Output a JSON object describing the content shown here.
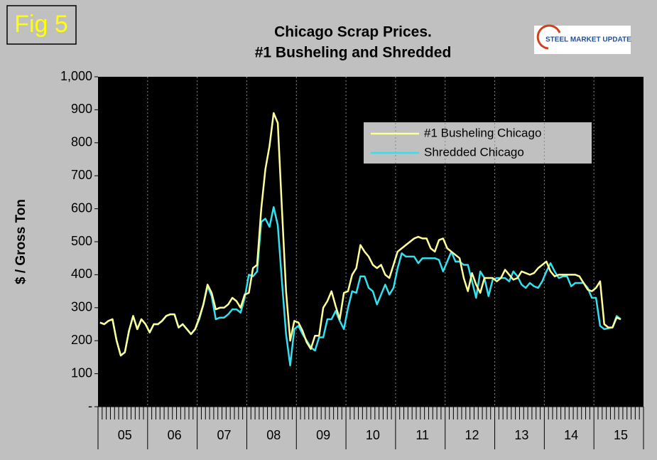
{
  "chart_data": {
    "type": "line",
    "figure_label": "Fig 5",
    "title_lines": [
      "Chicago Scrap Prices.",
      "#1 Busheling and Shredded"
    ],
    "logo_text": "STEEL MARKET UPDATE",
    "y_label": "$ / Gross Ton",
    "categories": [
      null,
      null,
      null,
      null,
      null,
      null,
      "05",
      null,
      null,
      null,
      null,
      null,
      null,
      null,
      null,
      null,
      null,
      null,
      "06",
      null,
      null,
      null,
      null,
      null,
      null,
      null,
      null,
      null,
      null,
      null,
      "07",
      null,
      null,
      null,
      null,
      null,
      null,
      null,
      null,
      null,
      null,
      null,
      "08",
      null,
      null,
      null,
      null,
      null,
      null,
      null,
      null,
      null,
      null,
      null,
      "09",
      null,
      null,
      null,
      null,
      null,
      null,
      null,
      null,
      null,
      null,
      null,
      "10",
      null,
      null,
      null,
      null,
      null,
      null,
      null,
      null,
      null,
      null,
      null,
      "11",
      null,
      null,
      null,
      null,
      null,
      null,
      null,
      null,
      null,
      null,
      null,
      "12",
      null,
      null,
      null,
      null,
      null,
      null,
      null,
      null,
      null,
      null,
      null,
      "13",
      null,
      null,
      null,
      null,
      null,
      null,
      null,
      null,
      null,
      null,
      null,
      "14",
      null,
      null,
      null,
      null,
      null,
      null,
      null,
      null,
      null,
      null,
      null,
      "15",
      null,
      null,
      null,
      null,
      null
    ],
    "series": [
      {
        "name": "#1 Busheling Chicago",
        "color": "#ffff99",
        "values": [
          255,
          250,
          260,
          265,
          200,
          155,
          165,
          230,
          275,
          235,
          265,
          250,
          225,
          250,
          250,
          260,
          275,
          280,
          280,
          240,
          250,
          235,
          220,
          235,
          270,
          310,
          370,
          345,
          295,
          300,
          300,
          310,
          330,
          320,
          300,
          340,
          345,
          420,
          430,
          600,
          720,
          790,
          890,
          860,
          600,
          350,
          200,
          260,
          255,
          230,
          195,
          175,
          215,
          215,
          300,
          320,
          350,
          305,
          265,
          345,
          350,
          400,
          420,
          490,
          470,
          455,
          430,
          420,
          430,
          400,
          390,
          430,
          470,
          480,
          490,
          500,
          510,
          515,
          510,
          510,
          480,
          470,
          505,
          510,
          480,
          470,
          460,
          450,
          390,
          350,
          405,
          370,
          345,
          390,
          390,
          390,
          380,
          390,
          415,
          400,
          385,
          390,
          410,
          405,
          400,
          405,
          420,
          430,
          440,
          410,
          395,
          400,
          400,
          400,
          400,
          400,
          395,
          375,
          355,
          350,
          360,
          380,
          250,
          240,
          240,
          270,
          265,
          null,
          null,
          null,
          null,
          null
        ]
      },
      {
        "name": "Shredded Chicago",
        "color": "#33e0f0",
        "values": [
          255,
          250,
          260,
          265,
          200,
          155,
          165,
          230,
          275,
          235,
          265,
          250,
          225,
          250,
          250,
          260,
          275,
          280,
          280,
          240,
          250,
          235,
          220,
          235,
          265,
          310,
          365,
          335,
          265,
          270,
          270,
          280,
          295,
          295,
          285,
          330,
          400,
          395,
          410,
          560,
          570,
          545,
          605,
          550,
          380,
          220,
          125,
          235,
          245,
          220,
          200,
          180,
          170,
          210,
          210,
          265,
          265,
          290,
          260,
          235,
          300,
          350,
          345,
          395,
          395,
          360,
          350,
          310,
          340,
          370,
          340,
          360,
          420,
          465,
          455,
          455,
          455,
          435,
          450,
          450,
          450,
          450,
          445,
          410,
          440,
          470,
          440,
          440,
          430,
          430,
          380,
          330,
          410,
          390,
          335,
          385,
          390,
          390,
          390,
          380,
          410,
          395,
          370,
          360,
          375,
          365,
          360,
          380,
          410,
          435,
          410,
          390,
          395,
          395,
          365,
          375,
          375,
          375,
          360,
          330,
          330,
          245,
          235,
          238,
          240,
          275,
          265,
          null,
          null,
          null,
          null,
          null
        ]
      }
    ],
    "ylim": [
      0,
      1000
    ],
    "yticks": [
      {
        "value": 0,
        "label": "-"
      },
      100,
      200,
      300,
      400,
      500,
      600,
      700,
      800,
      900,
      {
        "value": 1000,
        "label": "1,000"
      }
    ]
  }
}
